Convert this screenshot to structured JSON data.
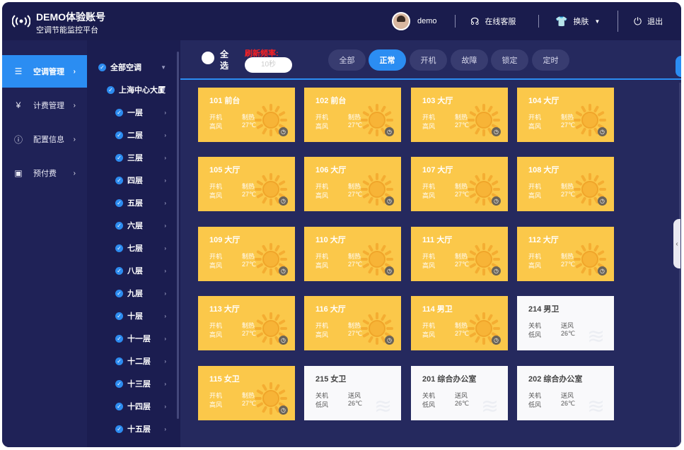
{
  "header": {
    "title": "DEMO体验账号",
    "subtitle": "空调节能监控平台",
    "user_name": "demo",
    "support_label": "在线客服",
    "skin_label": "换肤",
    "logout_label": "退出"
  },
  "sidebar": {
    "items": [
      {
        "label": "空调管理",
        "icon": "sliders-icon",
        "active": true
      },
      {
        "label": "计费管理",
        "icon": "yen-icon",
        "active": false
      },
      {
        "label": "配置信息",
        "icon": "info-icon",
        "active": false
      },
      {
        "label": "预付费",
        "icon": "wallet-icon",
        "active": false
      }
    ]
  },
  "tree": {
    "root": "全部空调",
    "building": "上海中心大厦",
    "floors": [
      "一层",
      "二层",
      "三层",
      "四层",
      "五层",
      "六层",
      "七层",
      "八层",
      "九层",
      "十层",
      "十一层",
      "十二层",
      "十三层",
      "十四层",
      "十五层"
    ]
  },
  "toolbar": {
    "select_all": "全选",
    "refresh_label": "刷新频率:",
    "refresh_value": "10秒",
    "tabs": [
      {
        "label": "全部",
        "active": false
      },
      {
        "label": "正常",
        "active": true
      },
      {
        "label": "开机",
        "active": false
      },
      {
        "label": "故障",
        "active": false
      },
      {
        "label": "锁定",
        "active": false
      },
      {
        "label": "定时",
        "active": false
      }
    ]
  },
  "cards": [
    {
      "title": "101  前台",
      "power": "开机",
      "mode": "制热",
      "fan": "高风",
      "temp": "27℃",
      "on": true
    },
    {
      "title": "102  前台",
      "power": "开机",
      "mode": "制热",
      "fan": "高风",
      "temp": "27℃",
      "on": true
    },
    {
      "title": "103  大厅",
      "power": "开机",
      "mode": "制热",
      "fan": "高风",
      "temp": "27℃",
      "on": true
    },
    {
      "title": "104  大厅",
      "power": "开机",
      "mode": "制热",
      "fan": "高风",
      "temp": "27℃",
      "on": true
    },
    {
      "title": "105  大厅",
      "power": "开机",
      "mode": "制热",
      "fan": "高风",
      "temp": "27℃",
      "on": true
    },
    {
      "title": "106  大厅",
      "power": "开机",
      "mode": "制热",
      "fan": "高风",
      "temp": "27℃",
      "on": true
    },
    {
      "title": "107  大厅",
      "power": "开机",
      "mode": "制热",
      "fan": "高风",
      "temp": "27℃",
      "on": true
    },
    {
      "title": "108  大厅",
      "power": "开机",
      "mode": "制热",
      "fan": "高风",
      "temp": "27℃",
      "on": true
    },
    {
      "title": "109  大厅",
      "power": "开机",
      "mode": "制热",
      "fan": "高风",
      "temp": "27℃",
      "on": true
    },
    {
      "title": "110  大厅",
      "power": "开机",
      "mode": "制热",
      "fan": "高风",
      "temp": "27℃",
      "on": true
    },
    {
      "title": "111  大厅",
      "power": "开机",
      "mode": "制热",
      "fan": "高风",
      "temp": "27℃",
      "on": true
    },
    {
      "title": "112  大厅",
      "power": "开机",
      "mode": "制热",
      "fan": "高风",
      "temp": "27℃",
      "on": true
    },
    {
      "title": "113  大厅",
      "power": "开机",
      "mode": "制热",
      "fan": "高风",
      "temp": "27℃",
      "on": true
    },
    {
      "title": "116  大厅",
      "power": "开机",
      "mode": "制热",
      "fan": "高风",
      "temp": "27℃",
      "on": true
    },
    {
      "title": "114  男卫",
      "power": "开机",
      "mode": "制热",
      "fan": "高风",
      "temp": "27℃",
      "on": true
    },
    {
      "title": "214  男卫",
      "power": "关机",
      "mode": "送风",
      "fan": "低风",
      "temp": "26℃",
      "on": false
    },
    {
      "title": "115  女卫",
      "power": "开机",
      "mode": "制热",
      "fan": "高风",
      "temp": "27℃",
      "on": true
    },
    {
      "title": "215  女卫",
      "power": "关机",
      "mode": "送风",
      "fan": "低风",
      "temp": "26℃",
      "on": false
    },
    {
      "title": "201  综合办公室",
      "power": "关机",
      "mode": "送风",
      "fan": "低风",
      "temp": "26℃",
      "on": false
    },
    {
      "title": "202  综合办公室",
      "power": "关机",
      "mode": "送风",
      "fan": "低风",
      "temp": "26℃",
      "on": false
    }
  ]
}
